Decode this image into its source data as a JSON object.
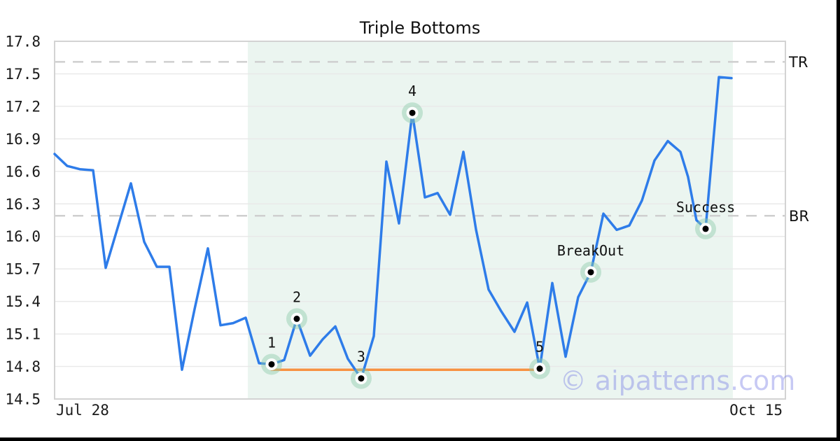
{
  "chart_data": {
    "type": "line",
    "title": "Triple Bottoms",
    "x_ticks": [
      "Jul 28",
      "Oct 15"
    ],
    "y_ticks": [
      "14.5",
      "14.8",
      "15.1",
      "15.4",
      "15.7",
      "16.0",
      "16.3",
      "16.6",
      "16.9",
      "17.2",
      "17.5",
      "17.8"
    ],
    "ylim": [
      14.5,
      17.8
    ],
    "grid": "horizontal-only",
    "legend": "none",
    "watermark": "© aipatterns.com",
    "colors": {
      "line": "#2e7ce9",
      "support": "#f79242",
      "zone": "#ebf5f0",
      "grid": "#e9e9e9",
      "plot_border": "#d3d3d3",
      "dashed_level": "#cfcfcf",
      "marker_halo": "#8fcdaa",
      "marker_dot": "#000000",
      "watermark": "#7b80e6"
    },
    "levels": [
      {
        "label": "TR",
        "value": 17.61
      },
      {
        "label": "BR",
        "value": 16.19
      }
    ],
    "pattern_zone": {
      "x0": 0.2644,
      "x1": 0.9281
    },
    "support_line": {
      "value": 14.77,
      "x0": 0.2969,
      "x1": 0.6638
    },
    "series": [
      {
        "name": "price",
        "points": [
          [
            0.0,
            16.76
          ],
          [
            0.0172,
            16.65
          ],
          [
            0.0345,
            16.62
          ],
          [
            0.0527,
            16.61
          ],
          [
            0.0699,
            15.71
          ],
          [
            0.0872,
            16.1
          ],
          [
            0.1044,
            16.49
          ],
          [
            0.1226,
            15.95
          ],
          [
            0.1398,
            15.72
          ],
          [
            0.1571,
            15.72
          ],
          [
            0.1743,
            14.77
          ],
          [
            0.1916,
            15.33
          ],
          [
            0.2098,
            15.89
          ],
          [
            0.227,
            15.18
          ],
          [
            0.2443,
            15.2
          ],
          [
            0.2615,
            15.25
          ],
          [
            0.2797,
            14.83
          ],
          [
            0.2969,
            14.82
          ],
          [
            0.3142,
            14.86
          ],
          [
            0.3314,
            15.24
          ],
          [
            0.3496,
            14.9
          ],
          [
            0.3668,
            15.05
          ],
          [
            0.3841,
            15.17
          ],
          [
            0.4013,
            14.87
          ],
          [
            0.4195,
            14.69
          ],
          [
            0.4368,
            15.08
          ],
          [
            0.454,
            16.69
          ],
          [
            0.4713,
            16.12
          ],
          [
            0.4895,
            17.14
          ],
          [
            0.5067,
            16.36
          ],
          [
            0.524,
            16.4
          ],
          [
            0.5412,
            16.2
          ],
          [
            0.5594,
            16.78
          ],
          [
            0.5767,
            16.06
          ],
          [
            0.5939,
            15.51
          ],
          [
            0.6111,
            15.31
          ],
          [
            0.6293,
            15.12
          ],
          [
            0.6466,
            15.39
          ],
          [
            0.6638,
            14.78
          ],
          [
            0.681,
            15.57
          ],
          [
            0.6992,
            14.89
          ],
          [
            0.7165,
            15.44
          ],
          [
            0.7337,
            15.67
          ],
          [
            0.751,
            16.21
          ],
          [
            0.7692,
            16.06
          ],
          [
            0.7864,
            16.1
          ],
          [
            0.8036,
            16.33
          ],
          [
            0.8209,
            16.7
          ],
          [
            0.8391,
            16.88
          ],
          [
            0.8563,
            16.78
          ],
          [
            0.8668,
            16.55
          ],
          [
            0.8783,
            16.15
          ],
          [
            0.8908,
            16.07
          ],
          [
            0.909,
            17.47
          ],
          [
            0.9262,
            17.46
          ]
        ]
      }
    ],
    "annotations": [
      {
        "label": "1",
        "x": 0.2969,
        "value": 14.82
      },
      {
        "label": "2",
        "x": 0.3314,
        "value": 15.24
      },
      {
        "label": "3",
        "x": 0.4195,
        "value": 14.69
      },
      {
        "label": "4",
        "x": 0.4895,
        "value": 17.14
      },
      {
        "label": "5",
        "x": 0.6638,
        "value": 14.78
      },
      {
        "label": "BreakOut",
        "x": 0.7337,
        "value": 15.67
      },
      {
        "label": "Success",
        "x": 0.8908,
        "value": 16.07
      }
    ]
  }
}
